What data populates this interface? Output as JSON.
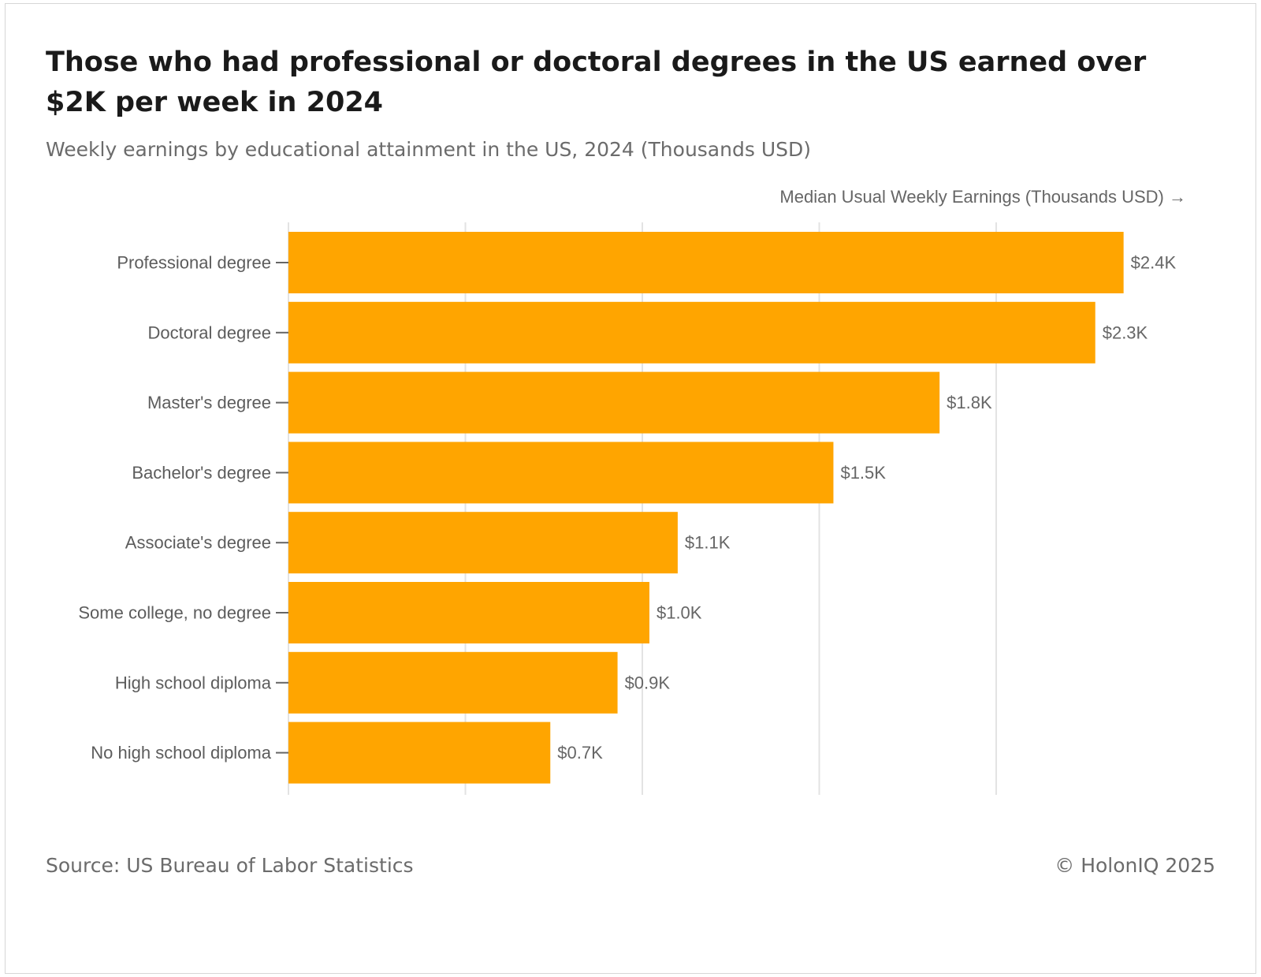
{
  "header": {
    "title": "Those who had professional or doctoral degrees in the US earned over $2K per week in 2024",
    "subtitle": "Weekly earnings by educational attainment in the US, 2024 (Thousands USD)"
  },
  "footer": {
    "source": "Source: US Bureau of Labor Statistics",
    "copyright": "© HolonIQ 2025"
  },
  "chart_data": {
    "type": "bar",
    "orientation": "horizontal",
    "categories": [
      "Professional degree",
      "Doctoral degree",
      "Master's degree",
      "Bachelor's degree",
      "Associate's degree",
      "Some college, no degree",
      "High school diploma",
      "No high school diploma"
    ],
    "values": [
      2.36,
      2.28,
      1.84,
      1.54,
      1.1,
      1.02,
      0.93,
      0.74
    ],
    "value_labels": [
      "$2.4K",
      "$2.3K",
      "$1.8K",
      "$1.5K",
      "$1.1K",
      "$1.0K",
      "$0.9K",
      "$0.7K"
    ],
    "xlabel": "Median Usual Weekly Earnings (Thousands USD) →",
    "ylabel": "",
    "xlim": [
      0,
      2.5
    ],
    "gridlines_at": [
      0,
      0.5,
      1,
      1.5,
      2
    ],
    "grid": true,
    "bar_color": "#FFA500",
    "gridline_color": "#e3e3e3"
  }
}
